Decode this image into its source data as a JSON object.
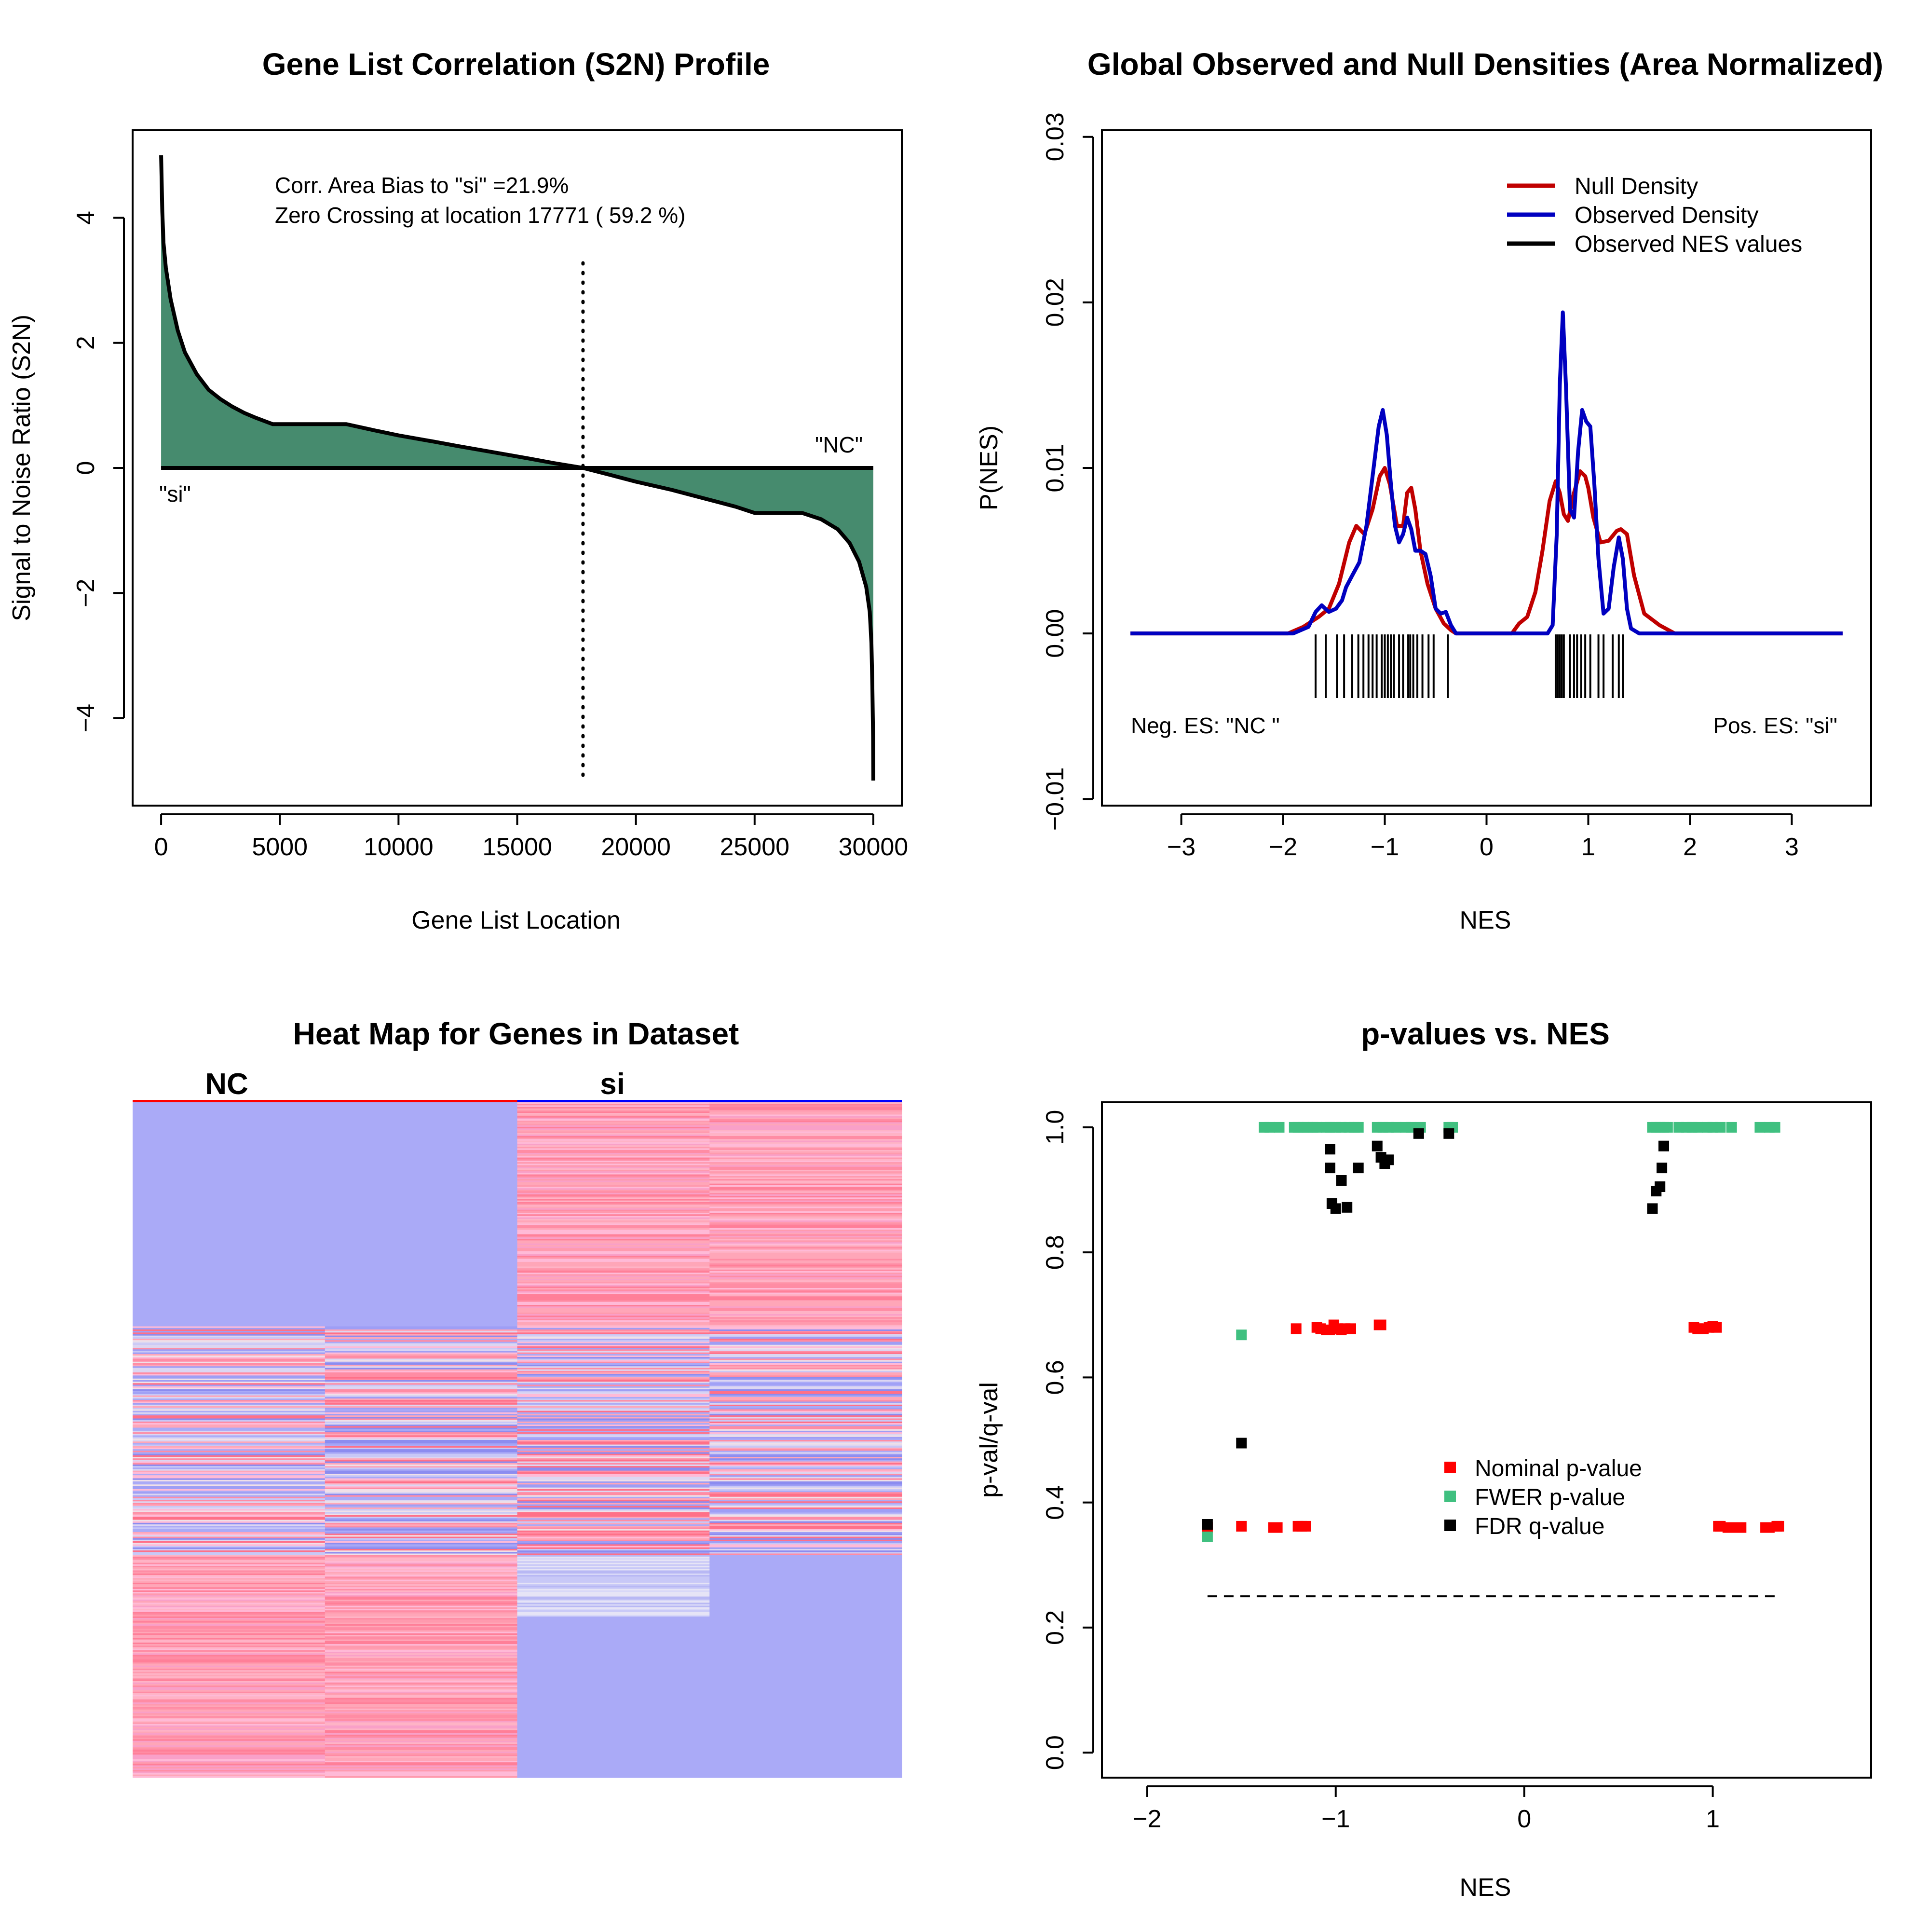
{
  "chart_data": [
    {
      "type": "area",
      "title": "Gene List Correlation (S2N) Profile",
      "xlabel": "Gene List Location",
      "ylabel": "Signal to Noise Ratio (S2N)",
      "xlim": [
        -1200,
        31200
      ],
      "ylim": [
        -5.4,
        5.4
      ],
      "xticks": [
        0,
        5000,
        10000,
        15000,
        20000,
        25000,
        30000
      ],
      "xtick_labels": [
        "0",
        "5000",
        "10000",
        "15000",
        "20000",
        "25000",
        "30000"
      ],
      "yticks": [
        -4,
        -2,
        0,
        2,
        4
      ],
      "ytick_labels": [
        "−4",
        "−2",
        "0",
        "2",
        "4"
      ],
      "annotations": {
        "bias": "Corr. Area Bias to \"si\" =21.9%",
        "zero_crossing": "Zero Crossing at location  17771  ( 59.2  %)",
        "left_label": "\"si\"",
        "right_label": "\"NC\""
      },
      "zero_crossing_location": 17771,
      "fill_color": "#468b6e",
      "x": [
        0,
        50,
        100,
        200,
        400,
        700,
        1000,
        1500,
        2000,
        2500,
        3000,
        3500,
        4000,
        4700,
        5500,
        6500,
        7800,
        9000,
        10000,
        11500,
        12500,
        14000,
        15500,
        16500,
        17771,
        19000,
        20000,
        21500,
        22500,
        23500,
        24200,
        25000,
        26000,
        27000,
        27800,
        28500,
        29000,
        29400,
        29700,
        29850,
        29920,
        29960,
        29990,
        30000
      ],
      "y": [
        5.0,
        4.1,
        3.6,
        3.2,
        2.7,
        2.2,
        1.85,
        1.5,
        1.25,
        1.1,
        0.98,
        0.88,
        0.8,
        0.7,
        0.7,
        0.7,
        0.7,
        0.6,
        0.52,
        0.42,
        0.35,
        0.25,
        0.15,
        0.08,
        0.0,
        -0.12,
        -0.22,
        -0.35,
        -0.45,
        -0.55,
        -0.62,
        -0.72,
        -0.72,
        -0.72,
        -0.82,
        -0.98,
        -1.2,
        -1.5,
        -1.9,
        -2.3,
        -2.8,
        -3.5,
        -4.3,
        -5.0
      ]
    },
    {
      "type": "line",
      "title": "Global Observed and Null Densities (Area Normalized)",
      "xlabel": "NES",
      "ylabel": "P(NES)",
      "xlim": [
        -3.78,
        3.78
      ],
      "ylim": [
        -0.0104,
        0.0304
      ],
      "xticks": [
        -3,
        -2,
        -1,
        0,
        1,
        2,
        3
      ],
      "xtick_labels": [
        "−3",
        "−2",
        "−1",
        "0",
        "1",
        "2",
        "3"
      ],
      "yticks": [
        -0.01,
        0.0,
        0.01,
        0.02,
        0.03
      ],
      "ytick_labels": [
        "−0.01",
        "0.00",
        "0.01",
        "0.02",
        "0.03"
      ],
      "annotations": {
        "neg_es": "Neg. ES: \"NC \"",
        "pos_es": "Pos. ES: \"si\""
      },
      "legend_position": "top-right",
      "series": [
        {
          "name": "Null Density",
          "color": "#c00000",
          "x": [
            -3.5,
            -1.95,
            -1.8,
            -1.65,
            -1.55,
            -1.45,
            -1.35,
            -1.28,
            -1.2,
            -1.12,
            -1.05,
            -1.0,
            -0.95,
            -0.88,
            -0.82,
            -0.78,
            -0.74,
            -0.7,
            -0.65,
            -0.58,
            -0.5,
            -0.42,
            -0.35,
            -0.3,
            0.0,
            0.25,
            0.32,
            0.4,
            0.48,
            0.55,
            0.62,
            0.68,
            0.72,
            0.76,
            0.8,
            0.86,
            0.92,
            0.97,
            1.0,
            1.05,
            1.12,
            1.2,
            1.28,
            1.32,
            1.38,
            1.45,
            1.55,
            1.7,
            1.85,
            3.5
          ],
          "y": [
            0.0,
            0.0,
            0.0004,
            0.001,
            0.0015,
            0.003,
            0.0055,
            0.0065,
            0.006,
            0.0075,
            0.0095,
            0.01,
            0.009,
            0.0065,
            0.0065,
            0.0085,
            0.0088,
            0.0075,
            0.005,
            0.003,
            0.0015,
            0.0006,
            0.0002,
            0.0,
            0.0,
            0.0,
            0.0006,
            0.001,
            0.0025,
            0.005,
            0.008,
            0.0092,
            0.0085,
            0.0072,
            0.0068,
            0.0085,
            0.0098,
            0.0095,
            0.0088,
            0.007,
            0.0055,
            0.0056,
            0.0062,
            0.0063,
            0.006,
            0.0035,
            0.0012,
            0.0005,
            0.0,
            0.0
          ]
        },
        {
          "name": "Observed Density",
          "color": "#0000c0",
          "x": [
            -3.5,
            -1.9,
            -1.75,
            -1.68,
            -1.62,
            -1.55,
            -1.48,
            -1.42,
            -1.38,
            -1.32,
            -1.25,
            -1.18,
            -1.12,
            -1.06,
            -1.02,
            -0.98,
            -0.94,
            -0.9,
            -0.86,
            -0.82,
            -0.78,
            -0.74,
            -0.7,
            -0.65,
            -0.6,
            -0.55,
            -0.5,
            -0.45,
            -0.4,
            -0.35,
            -0.3,
            0.5,
            0.6,
            0.65,
            0.69,
            0.72,
            0.75,
            0.78,
            0.82,
            0.86,
            0.9,
            0.94,
            0.98,
            1.02,
            1.06,
            1.1,
            1.15,
            1.2,
            1.25,
            1.3,
            1.34,
            1.38,
            1.42,
            1.5,
            3.5
          ],
          "y": [
            0.0,
            0.0,
            0.0004,
            0.0013,
            0.0017,
            0.0013,
            0.0015,
            0.002,
            0.0028,
            0.0035,
            0.0043,
            0.0065,
            0.0095,
            0.0125,
            0.0135,
            0.012,
            0.009,
            0.0065,
            0.0055,
            0.006,
            0.007,
            0.0063,
            0.005,
            0.005,
            0.0048,
            0.0035,
            0.0015,
            0.0012,
            0.0013,
            0.0005,
            0.0,
            0.0,
            0.0,
            0.0005,
            0.006,
            0.015,
            0.0194,
            0.015,
            0.0075,
            0.007,
            0.011,
            0.0135,
            0.0128,
            0.0125,
            0.009,
            0.0045,
            0.0012,
            0.0015,
            0.004,
            0.0058,
            0.0045,
            0.0015,
            0.0003,
            0.0,
            0.0
          ]
        },
        {
          "name": "Observed NES values",
          "color": "#000000",
          "ticks": [
            -1.68,
            -1.58,
            -1.47,
            -1.4,
            -1.32,
            -1.26,
            -1.21,
            -1.16,
            -1.12,
            -1.08,
            -1.03,
            -1.0,
            -0.97,
            -0.94,
            -0.91,
            -0.86,
            -0.82,
            -0.77,
            -0.75,
            -0.72,
            -0.68,
            -0.63,
            -0.57,
            -0.52,
            -0.38,
            0.68,
            0.7,
            0.72,
            0.74,
            0.76,
            0.82,
            0.86,
            0.89,
            0.93,
            0.97,
            1.02,
            1.1,
            1.15,
            1.24,
            1.3,
            1.34
          ]
        }
      ]
    },
    {
      "type": "heatmap",
      "title": "Heat Map for Genes in Dataset",
      "columns": [
        "NC",
        "si"
      ],
      "column_colors": [
        "#ff0000",
        "#0000ff"
      ],
      "samples_per_group": 2,
      "colors": {
        "blue_base": "#aaaaf7",
        "pink_base": "#ffa6b8"
      }
    },
    {
      "type": "scatter",
      "title": "p-values vs. NES",
      "xlabel": "NES",
      "ylabel": "p-val/q-val",
      "xlim": [
        -2.24,
        1.84
      ],
      "ylim": [
        -0.04,
        1.04
      ],
      "xticks": [
        -2,
        -1,
        0,
        1
      ],
      "xtick_labels": [
        "−2",
        "−1",
        "0",
        "1"
      ],
      "yticks": [
        0.0,
        0.2,
        0.4,
        0.6,
        0.8,
        1.0
      ],
      "ytick_labels": [
        "0.0",
        "0.2",
        "0.4",
        "0.6",
        "0.8",
        "1.0"
      ],
      "hline": {
        "y": 0.25,
        "x_from": -1.68,
        "x_to": 1.36
      },
      "legend_position": "center-right",
      "series": [
        {
          "name": "Nominal p-value",
          "color": "#ff0000",
          "x": [
            -1.68,
            -1.5,
            -1.33,
            -1.31,
            -1.2,
            -1.18,
            -1.16,
            -1.21,
            -1.1,
            -1.08,
            -1.05,
            -1.03,
            -1.01,
            -0.99,
            -0.97,
            -0.95,
            -0.92,
            -0.77,
            -0.76,
            1.03,
            1.04,
            1.08,
            1.1,
            1.15,
            1.28,
            1.3,
            1.34,
            1.35,
            0.9,
            0.92,
            0.95,
            0.98,
            1.0,
            1.02
          ],
          "y": [
            0.36,
            0.362,
            0.36,
            0.36,
            0.362,
            0.362,
            0.362,
            0.678,
            0.68,
            0.678,
            0.676,
            0.676,
            0.684,
            0.678,
            0.676,
            0.678,
            0.678,
            0.684,
            0.684,
            0.362,
            0.362,
            0.36,
            0.36,
            0.36,
            0.36,
            0.36,
            0.362,
            0.362,
            0.68,
            0.678,
            0.678,
            0.68,
            0.682,
            0.68
          ]
        },
        {
          "name": "FWER p-value",
          "color": "#40c080",
          "x": [
            -1.68,
            -1.5,
            -1.38,
            -1.35,
            -1.3,
            -1.22,
            -1.2,
            -1.17,
            -1.15,
            -1.12,
            -1.1,
            -1.05,
            -1.03,
            -1.0,
            -0.97,
            -0.93,
            -0.9,
            -0.88,
            -0.78,
            -0.75,
            -0.72,
            -0.68,
            -0.63,
            -0.6,
            -0.55,
            -0.4,
            -0.38,
            0.68,
            0.7,
            0.72,
            0.74,
            0.76,
            0.82,
            0.86,
            0.89,
            0.92,
            0.97,
            1.0,
            1.04,
            1.1,
            1.25,
            1.3,
            1.33
          ],
          "y": [
            0.345,
            0.668,
            1.0,
            1.0,
            1.0,
            1.0,
            1.0,
            1.0,
            1.0,
            1.0,
            1.0,
            1.0,
            1.0,
            1.0,
            1.0,
            1.0,
            1.0,
            1.0,
            1.0,
            1.0,
            1.0,
            1.0,
            1.0,
            1.0,
            1.0,
            1.0,
            1.0,
            1.0,
            1.0,
            1.0,
            1.0,
            1.0,
            1.0,
            1.0,
            1.0,
            1.0,
            1.0,
            1.0,
            1.0,
            1.0,
            1.0,
            1.0,
            1.0
          ]
        },
        {
          "name": "FDR q-value",
          "color": "#000000",
          "x": [
            -1.68,
            -1.5,
            -1.03,
            -1.03,
            -1.02,
            -1.0,
            -0.97,
            -0.94,
            -0.88,
            -0.78,
            -0.76,
            -0.74,
            -0.72,
            -0.56,
            -0.4,
            0.68,
            0.7,
            0.72,
            0.73,
            0.74
          ],
          "y": [
            0.365,
            0.495,
            0.965,
            0.935,
            0.878,
            0.87,
            0.915,
            0.872,
            0.935,
            0.97,
            0.952,
            0.942,
            0.948,
            0.99,
            0.99,
            0.87,
            0.898,
            0.905,
            0.935,
            0.97
          ]
        }
      ]
    }
  ]
}
